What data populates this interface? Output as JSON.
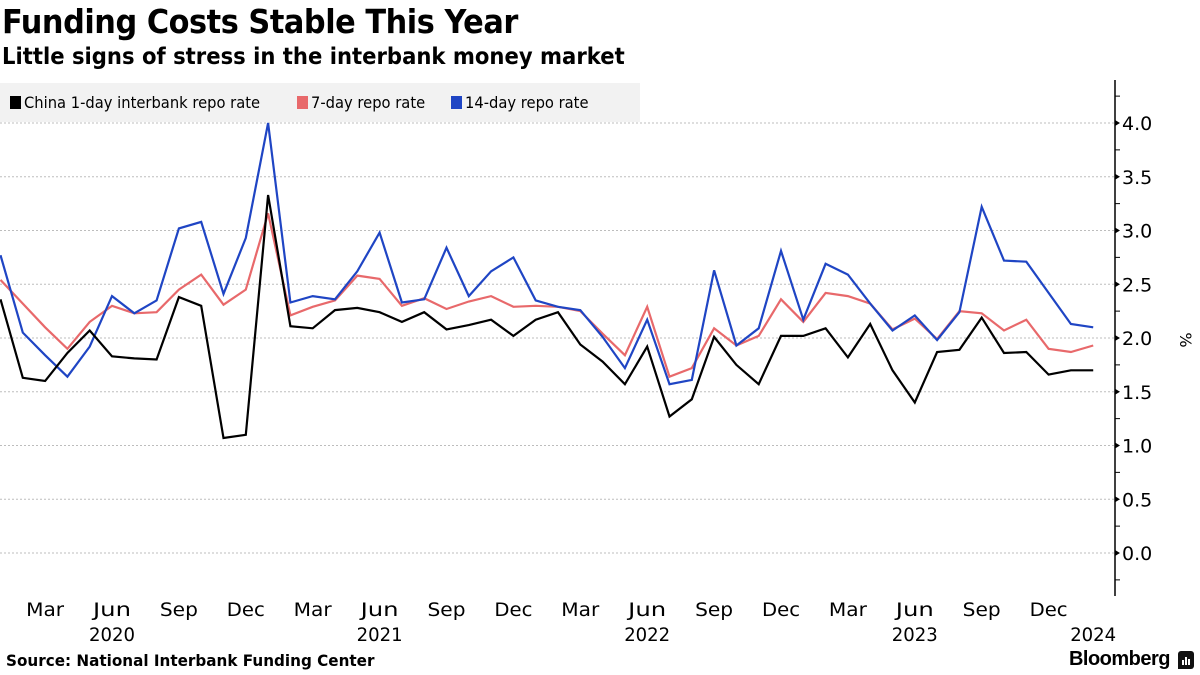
{
  "header": {
    "title": "Funding Costs Stable This Year",
    "subtitle": "Little signs of stress in the interbank money market"
  },
  "footer": {
    "source": "Source: National Interbank Funding Center",
    "brand": "Bloomberg",
    "brand_icon": "bloomberg-logo-icon"
  },
  "chart_data": {
    "type": "line",
    "title": "Funding Costs Stable This Year",
    "subtitle": "Little signs of stress in the interbank money market",
    "xlabel": "",
    "ylabel": "%",
    "y_axis_side": "right",
    "ylim": [
      -0.4,
      4.4
    ],
    "yticks": [
      0.0,
      0.5,
      1.0,
      1.5,
      2.0,
      2.5,
      3.0,
      3.5,
      4.0
    ],
    "ytick_labels": [
      "0.0",
      "0.5",
      "1.0",
      "1.5",
      "2.0",
      "2.5",
      "3.0",
      "3.5",
      "4.0"
    ],
    "grid": true,
    "legend_position": "top-left",
    "x_start": "2020-01",
    "x_end": "2024-02",
    "x_frequency": "monthly",
    "xticks": [
      {
        "index": 2,
        "label": "Mar",
        "year": ""
      },
      {
        "index": 5,
        "label": "Jun",
        "year": "2020"
      },
      {
        "index": 8,
        "label": "Sep",
        "year": ""
      },
      {
        "index": 11,
        "label": "Dec",
        "year": ""
      },
      {
        "index": 14,
        "label": "Mar",
        "year": ""
      },
      {
        "index": 17,
        "label": "Jun",
        "year": "2021"
      },
      {
        "index": 20,
        "label": "Sep",
        "year": ""
      },
      {
        "index": 23,
        "label": "Dec",
        "year": ""
      },
      {
        "index": 26,
        "label": "Mar",
        "year": ""
      },
      {
        "index": 29,
        "label": "Jun",
        "year": "2022"
      },
      {
        "index": 32,
        "label": "Sep",
        "year": ""
      },
      {
        "index": 35,
        "label": "Dec",
        "year": ""
      },
      {
        "index": 38,
        "label": "Mar",
        "year": ""
      },
      {
        "index": 41,
        "label": "Jun",
        "year": "2023"
      },
      {
        "index": 44,
        "label": "Sep",
        "year": ""
      },
      {
        "index": 47,
        "label": "Dec",
        "year": ""
      },
      {
        "index": 49,
        "label": "",
        "year": "2024"
      }
    ],
    "series": [
      {
        "name": "China 1-day interbank repo rate",
        "color": "#000000",
        "values": [
          2.36,
          1.63,
          1.6,
          1.86,
          2.07,
          1.83,
          1.81,
          1.8,
          2.38,
          2.3,
          1.07,
          1.1,
          3.33,
          2.11,
          2.09,
          2.26,
          2.28,
          2.24,
          2.15,
          2.24,
          2.08,
          2.12,
          2.17,
          2.02,
          2.17,
          2.24,
          1.94,
          1.78,
          1.57,
          1.92,
          1.27,
          1.43,
          2.01,
          1.75,
          1.57,
          2.02,
          2.02,
          2.09,
          1.82,
          2.13,
          1.7,
          1.4,
          1.87,
          1.89,
          2.19,
          1.86,
          1.87,
          1.66,
          1.7,
          1.7
        ]
      },
      {
        "name": "7-day repo rate",
        "color": "#e8696b",
        "values": [
          2.54,
          2.32,
          2.1,
          1.9,
          2.15,
          2.3,
          2.23,
          2.24,
          2.45,
          2.59,
          2.31,
          2.45,
          3.16,
          2.21,
          2.29,
          2.35,
          2.58,
          2.55,
          2.3,
          2.37,
          2.27,
          2.34,
          2.39,
          2.29,
          2.3,
          2.29,
          2.25,
          2.04,
          1.84,
          2.29,
          1.64,
          1.72,
          2.09,
          1.93,
          2.02,
          2.36,
          2.15,
          2.42,
          2.39,
          2.32,
          2.08,
          2.18,
          1.99,
          2.25,
          2.23,
          2.07,
          2.17,
          1.9,
          1.87,
          1.93
        ]
      },
      {
        "name": "14-day repo rate",
        "color": "#1f45c4",
        "values": [
          2.77,
          2.05,
          1.84,
          1.64,
          1.92,
          2.39,
          2.23,
          2.35,
          3.02,
          3.08,
          2.41,
          2.93,
          4.0,
          2.33,
          2.39,
          2.36,
          2.62,
          2.98,
          2.33,
          2.36,
          2.84,
          2.39,
          2.62,
          2.75,
          2.35,
          2.29,
          2.26,
          2.01,
          1.72,
          2.17,
          1.57,
          1.61,
          2.63,
          1.93,
          2.09,
          2.81,
          2.17,
          2.69,
          2.59,
          2.32,
          2.07,
          2.21,
          1.98,
          2.24,
          3.22,
          2.72,
          2.71,
          2.42,
          2.13,
          2.1
        ]
      }
    ]
  }
}
